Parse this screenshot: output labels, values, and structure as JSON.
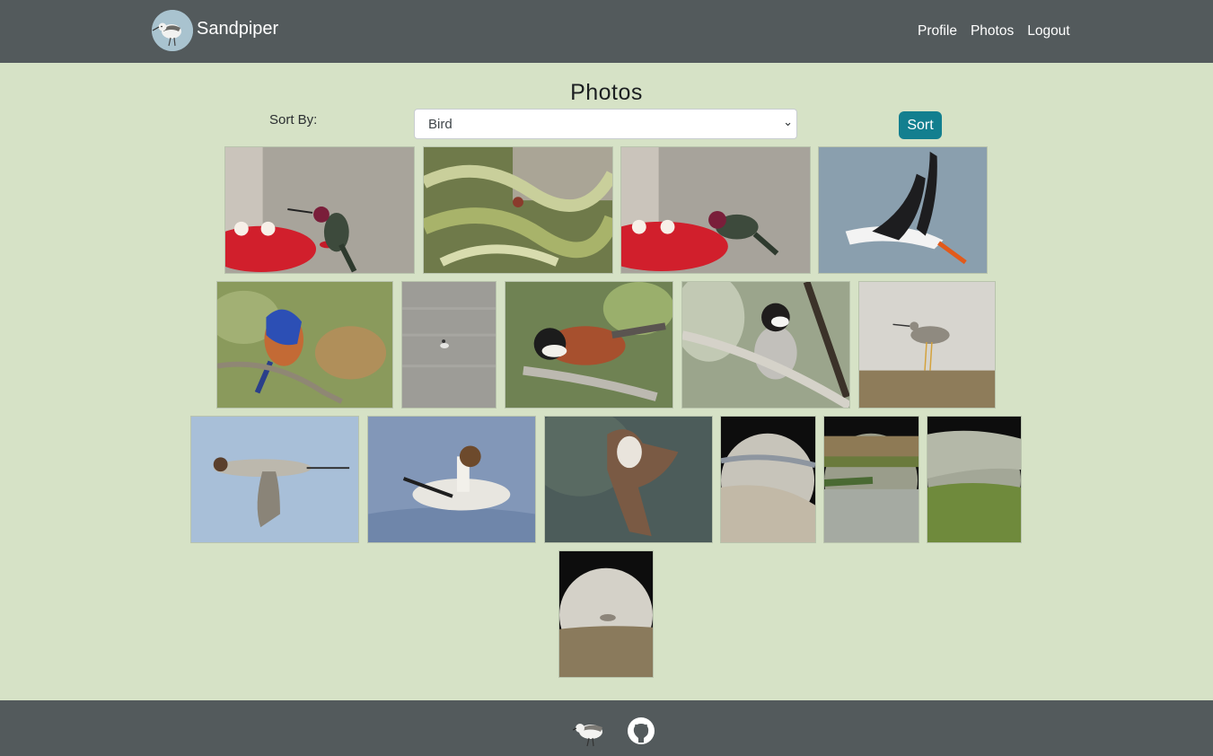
{
  "app": {
    "name": "Sandpiper",
    "logo_icon": "sandpiper-logo-icon"
  },
  "nav": {
    "links": [
      {
        "label": "Profile"
      },
      {
        "label": "Photos"
      },
      {
        "label": "Logout"
      }
    ]
  },
  "page": {
    "title": "Photos"
  },
  "sort": {
    "label": "Sort By:",
    "selected": "Bird",
    "button_label": "Sort"
  },
  "photos": [
    {
      "subject": "hummingbird at feeder"
    },
    {
      "subject": "bird in evergreen branches"
    },
    {
      "subject": "hummingbird at feeder"
    },
    {
      "subject": "black skimmer in flight"
    },
    {
      "subject": "western bluebird on branch"
    },
    {
      "subject": "bird on gray water"
    },
    {
      "subject": "chestnut-backed chickadee"
    },
    {
      "subject": "chestnut-backed chickadee on branch"
    },
    {
      "subject": "shorebird on mudflat"
    },
    {
      "subject": "northern pintail in flight"
    },
    {
      "subject": "northern pintail on water"
    },
    {
      "subject": "osprey in flight"
    },
    {
      "subject": "shoreline through scope"
    },
    {
      "subject": "marsh pond through scope"
    },
    {
      "subject": "marsh grass through scope"
    },
    {
      "subject": "sandpiper through scope"
    }
  ],
  "footer": {
    "icons": [
      "sandpiper-icon",
      "github-icon"
    ]
  },
  "colors": {
    "navbar": "#535a5c",
    "page_background": "#d6e2c6",
    "sort_button": "#137f8f"
  }
}
